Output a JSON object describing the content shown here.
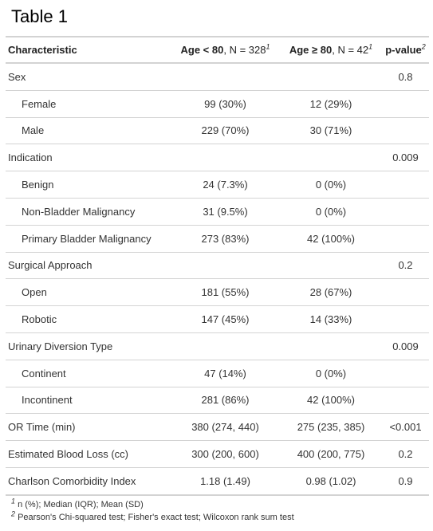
{
  "title": "Table 1",
  "header": {
    "characteristic": "Characteristic",
    "group1": {
      "bold": "Age < 80",
      "rest": ", N = 328",
      "sup": "1"
    },
    "group2": {
      "bold": "Age ≥ 80",
      "rest": ", N = 42",
      "sup": "1"
    },
    "pvalue": {
      "bold": "p-value",
      "sup": "2"
    }
  },
  "rows": [
    {
      "label": "Sex",
      "g1": "",
      "g2": "",
      "p": "0.8",
      "indent": false
    },
    {
      "label": "Female",
      "g1": "99 (30%)",
      "g2": "12 (29%)",
      "p": "",
      "indent": true
    },
    {
      "label": "Male",
      "g1": "229 (70%)",
      "g2": "30 (71%)",
      "p": "",
      "indent": true
    },
    {
      "label": "Indication",
      "g1": "",
      "g2": "",
      "p": "0.009",
      "indent": false
    },
    {
      "label": "Benign",
      "g1": "24 (7.3%)",
      "g2": "0 (0%)",
      "p": "",
      "indent": true
    },
    {
      "label": "Non-Bladder Malignancy",
      "g1": "31 (9.5%)",
      "g2": "0 (0%)",
      "p": "",
      "indent": true
    },
    {
      "label": "Primary Bladder Malignancy",
      "g1": "273 (83%)",
      "g2": "42 (100%)",
      "p": "",
      "indent": true
    },
    {
      "label": "Surgical Approach",
      "g1": "",
      "g2": "",
      "p": "0.2",
      "indent": false
    },
    {
      "label": "Open",
      "g1": "181 (55%)",
      "g2": "28 (67%)",
      "p": "",
      "indent": true
    },
    {
      "label": "Robotic",
      "g1": "147 (45%)",
      "g2": "14 (33%)",
      "p": "",
      "indent": true
    },
    {
      "label": "Urinary Diversion Type",
      "g1": "",
      "g2": "",
      "p": "0.009",
      "indent": false
    },
    {
      "label": "Continent",
      "g1": "47 (14%)",
      "g2": "0 (0%)",
      "p": "",
      "indent": true
    },
    {
      "label": "Incontinent",
      "g1": "281 (86%)",
      "g2": "42 (100%)",
      "p": "",
      "indent": true
    },
    {
      "label": "OR Time (min)",
      "g1": "380 (274, 440)",
      "g2": "275 (235, 385)",
      "p": "<0.001",
      "indent": false
    },
    {
      "label": "Estimated Blood Loss (cc)",
      "g1": "300 (200, 600)",
      "g2": "400 (200, 775)",
      "p": "0.2",
      "indent": false
    },
    {
      "label": "Charlson Comorbidity Index",
      "g1": "1.18 (1.49)",
      "g2": "0.98 (1.02)",
      "p": "0.9",
      "indent": false
    }
  ],
  "footnotes": [
    {
      "sup": "1",
      "text": " n (%); Median (IQR); Mean (SD)"
    },
    {
      "sup": "2",
      "text": " Pearson's Chi-squared test; Fisher's exact test; Wilcoxon rank sum test"
    }
  ]
}
